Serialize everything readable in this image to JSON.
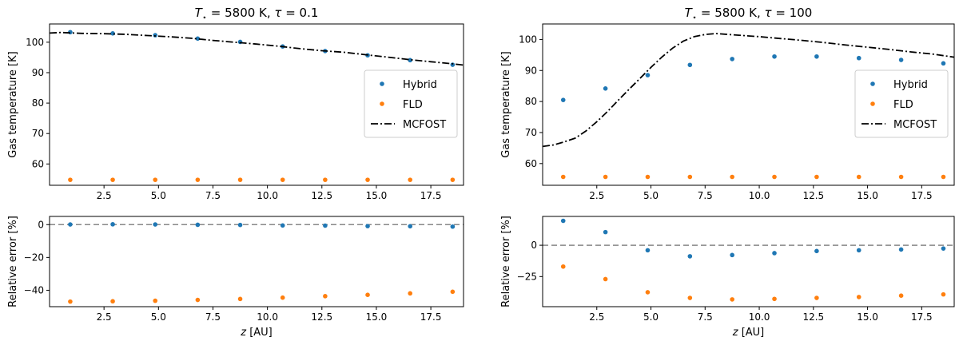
{
  "chart_data": [
    {
      "type": "scatter",
      "panel": "top-left",
      "title": "T⋆ = 5800 K, τ = 0.1",
      "title_parts": [
        "T",
        "⋆",
        " = 5800 K, ",
        "τ",
        " = 0.1"
      ],
      "xlabel": "",
      "ylabel": "Gas temperature [K]",
      "xlim": [
        0,
        19
      ],
      "ylim": [
        53,
        106
      ],
      "xticks": [
        "2.5",
        "5.0",
        "7.5",
        "10.0",
        "12.5",
        "15.0",
        "17.5"
      ],
      "yticks": [
        "60",
        "70",
        "80",
        "90",
        "100"
      ],
      "legend": "center-right",
      "series": [
        {
          "name": "Hybrid",
          "kind": "points",
          "color": "#1f77b4",
          "x": [
            0.95,
            2.9,
            4.85,
            6.8,
            8.75,
            10.7,
            12.65,
            14.6,
            16.55,
            18.5
          ],
          "y": [
            103.3,
            102.9,
            102.3,
            101.2,
            100.1,
            98.6,
            97.1,
            95.7,
            94.1,
            92.6
          ]
        },
        {
          "name": "FLD",
          "kind": "points",
          "color": "#ff7f0e",
          "x": [
            0.95,
            2.9,
            4.85,
            6.8,
            8.75,
            10.7,
            12.65,
            14.6,
            16.55,
            18.5
          ],
          "y": [
            54.8,
            54.8,
            54.8,
            54.8,
            54.8,
            54.8,
            54.8,
            54.8,
            54.8,
            54.8
          ]
        },
        {
          "name": "MCFOST",
          "kind": "dashdot",
          "color": "#000000",
          "x": [
            0,
            0.5,
            1.5,
            2.5,
            3.5,
            4.5,
            5.5,
            6.5,
            7.5,
            8.5,
            9.5,
            10.5,
            11.5,
            12.5,
            13.5,
            14.5,
            15.5,
            16.5,
            17.5,
            18.5,
            19
          ],
          "y": [
            103.0,
            103.2,
            102.9,
            102.8,
            102.6,
            102.2,
            101.8,
            101.3,
            100.6,
            100.0,
            99.4,
            98.7,
            97.9,
            97.2,
            96.7,
            95.9,
            95.1,
            94.3,
            93.6,
            92.9,
            92.5
          ]
        }
      ]
    },
    {
      "type": "scatter",
      "panel": "bottom-left",
      "xlabel": "z [AU]",
      "xlabel_parts": [
        "z",
        " [AU]"
      ],
      "ylabel": "Relative error [%]",
      "xlim": [
        0,
        19
      ],
      "ylim": [
        -50,
        5
      ],
      "xticks": [
        "2.5",
        "5.0",
        "7.5",
        "10.0",
        "12.5",
        "15.0",
        "17.5"
      ],
      "yticks": [
        "0",
        "−20",
        "−40"
      ],
      "reference_line": 0,
      "series": [
        {
          "name": "Hybrid",
          "color": "#1f77b4",
          "x": [
            0.95,
            2.9,
            4.85,
            6.8,
            8.75,
            10.7,
            12.65,
            14.6,
            16.55,
            18.5
          ],
          "y": [
            0.1,
            0.2,
            0.1,
            -0.1,
            -0.2,
            -0.5,
            -0.6,
            -0.9,
            -1.0,
            -1.2
          ]
        },
        {
          "name": "FLD",
          "color": "#ff7f0e",
          "x": [
            0.95,
            2.9,
            4.85,
            6.8,
            8.75,
            10.7,
            12.65,
            14.6,
            16.55,
            18.5
          ],
          "y": [
            -46.9,
            -46.7,
            -46.4,
            -45.9,
            -45.3,
            -44.5,
            -43.6,
            -42.8,
            -41.9,
            -40.9
          ]
        }
      ]
    },
    {
      "type": "scatter",
      "panel": "top-right",
      "title": "T⋆ = 5800 K, τ = 100",
      "title_parts": [
        "T",
        "⋆",
        " = 5800 K, ",
        "τ",
        " = 100"
      ],
      "xlabel": "",
      "ylabel": "Gas temperature [K]",
      "xlim": [
        0,
        19
      ],
      "ylim": [
        53,
        105
      ],
      "xticks": [
        "2.5",
        "5.0",
        "7.5",
        "10.0",
        "12.5",
        "15.0",
        "17.5"
      ],
      "yticks": [
        "60",
        "70",
        "80",
        "90",
        "100"
      ],
      "legend": "center-right",
      "series": [
        {
          "name": "Hybrid",
          "kind": "points",
          "color": "#1f77b4",
          "x": [
            0.95,
            2.9,
            4.85,
            6.8,
            8.75,
            10.7,
            12.65,
            14.6,
            16.55,
            18.5
          ],
          "y": [
            80.5,
            84.2,
            88.5,
            91.8,
            93.7,
            94.5,
            94.5,
            94.0,
            93.4,
            92.3
          ]
        },
        {
          "name": "FLD",
          "kind": "points",
          "color": "#ff7f0e",
          "x": [
            0.95,
            2.9,
            4.85,
            6.8,
            8.75,
            10.7,
            12.65,
            14.6,
            16.55,
            18.5
          ],
          "y": [
            55.7,
            55.7,
            55.7,
            55.7,
            55.7,
            55.7,
            55.7,
            55.7,
            55.7,
            55.7
          ]
        },
        {
          "name": "MCFOST",
          "kind": "dashdot",
          "color": "#000000",
          "x": [
            0,
            0.5,
            1,
            1.5,
            2,
            2.5,
            3,
            3.5,
            4,
            4.5,
            5,
            5.5,
            6,
            6.5,
            7,
            7.5,
            8,
            9,
            10,
            11,
            12,
            13,
            14,
            15,
            16,
            17,
            18,
            19
          ],
          "y": [
            65.5,
            66.0,
            67.0,
            68.2,
            70.5,
            73.5,
            76.8,
            80.5,
            84.0,
            87.5,
            91.0,
            94.3,
            97.2,
            99.5,
            100.9,
            101.6,
            101.9,
            101.4,
            100.9,
            100.3,
            99.7,
            99.0,
            98.2,
            97.5,
            96.8,
            96.0,
            95.3,
            94.3
          ]
        }
      ]
    },
    {
      "type": "scatter",
      "panel": "bottom-right",
      "xlabel": "z [AU]",
      "xlabel_parts": [
        "z",
        " [AU]"
      ],
      "ylabel": "Relative error [%]",
      "xlim": [
        0,
        19
      ],
      "ylim": [
        -49,
        23
      ],
      "xticks": [
        "2.5",
        "5.0",
        "7.5",
        "10.0",
        "12.5",
        "15.0",
        "17.5"
      ],
      "yticks": [
        "0",
        "−25"
      ],
      "reference_line": 0,
      "series": [
        {
          "name": "Hybrid",
          "color": "#1f77b4",
          "x": [
            0.95,
            2.9,
            4.85,
            6.8,
            8.75,
            10.7,
            12.65,
            14.6,
            16.55,
            18.5
          ],
          "y": [
            19.5,
            10.5,
            -4.0,
            -8.8,
            -7.8,
            -6.3,
            -4.6,
            -4.0,
            -3.4,
            -2.6
          ]
        },
        {
          "name": "FLD",
          "color": "#ff7f0e",
          "x": [
            0.95,
            2.9,
            4.85,
            6.8,
            8.75,
            10.7,
            12.65,
            14.6,
            16.55,
            18.5
          ],
          "y": [
            -17.0,
            -27.0,
            -37.5,
            -42.0,
            -43.2,
            -42.8,
            -42.0,
            -41.3,
            -40.2,
            -39.2
          ]
        }
      ]
    }
  ]
}
